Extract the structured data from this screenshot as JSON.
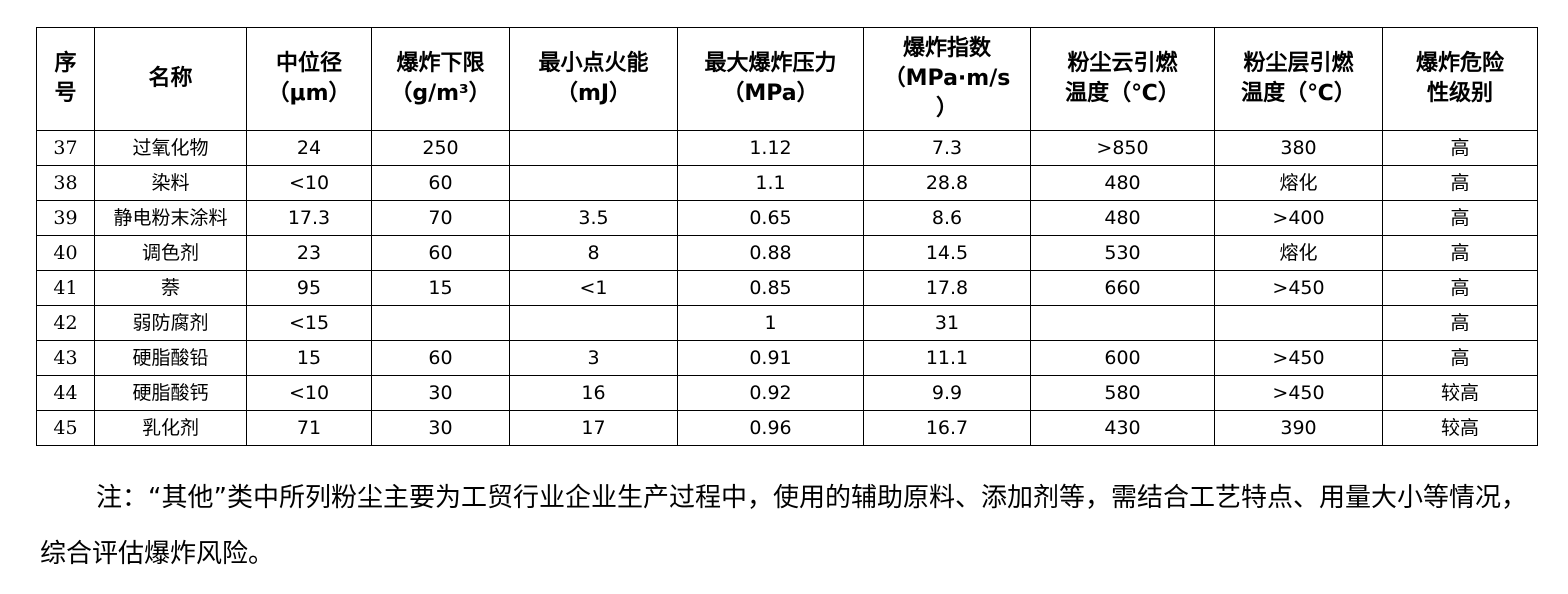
{
  "table": {
    "headers": [
      {
        "lines": [
          "序",
          "号"
        ]
      },
      {
        "lines": [
          "名称"
        ]
      },
      {
        "lines": [
          "中位径",
          "（μm）"
        ]
      },
      {
        "lines": [
          "爆炸下限",
          "（g/m³）"
        ]
      },
      {
        "lines": [
          "最小点火能",
          "（mJ）"
        ]
      },
      {
        "lines": [
          "最大爆炸压力",
          "（MPa）"
        ]
      },
      {
        "lines": [
          "爆炸指数",
          "（MPa·m/s",
          "）"
        ]
      },
      {
        "lines": [
          "粉尘云引燃",
          "温度（℃）"
        ]
      },
      {
        "lines": [
          "粉尘层引燃",
          "温度（℃）"
        ]
      },
      {
        "lines": [
          "爆炸危险",
          "性级别"
        ]
      }
    ],
    "rows": [
      [
        "37",
        "过氧化物",
        "24",
        "250",
        "",
        "1.12",
        "7.3",
        ">850",
        "380",
        "高"
      ],
      [
        "38",
        "染料",
        "<10",
        "60",
        "",
        "1.1",
        "28.8",
        "480",
        "熔化",
        "高"
      ],
      [
        "39",
        "静电粉末涂料",
        "17.3",
        "70",
        "3.5",
        "0.65",
        "8.6",
        "480",
        ">400",
        "高"
      ],
      [
        "40",
        "调色剂",
        "23",
        "60",
        "8",
        "0.88",
        "14.5",
        "530",
        "熔化",
        "高"
      ],
      [
        "41",
        "萘",
        "95",
        "15",
        "<1",
        "0.85",
        "17.8",
        "660",
        ">450",
        "高"
      ],
      [
        "42",
        "弱防腐剂",
        "<15",
        "",
        "",
        "1",
        "31",
        "",
        "",
        "高"
      ],
      [
        "43",
        "硬脂酸铅",
        "15",
        "60",
        "3",
        "0.91",
        "11.1",
        "600",
        ">450",
        "高"
      ],
      [
        "44",
        "硬脂酸钙",
        "<10",
        "30",
        "16",
        "0.92",
        "9.9",
        "580",
        ">450",
        "较高"
      ],
      [
        "45",
        "乳化剂",
        "71",
        "30",
        "17",
        "0.96",
        "16.7",
        "430",
        "390",
        "较高"
      ]
    ]
  },
  "note": "注：“其他”类中所列粉尘主要为工贸行业企业生产过程中，使用的辅助原料、添加剂等，需结合工艺特点、用量大小等情况，综合评估爆炸风险。"
}
